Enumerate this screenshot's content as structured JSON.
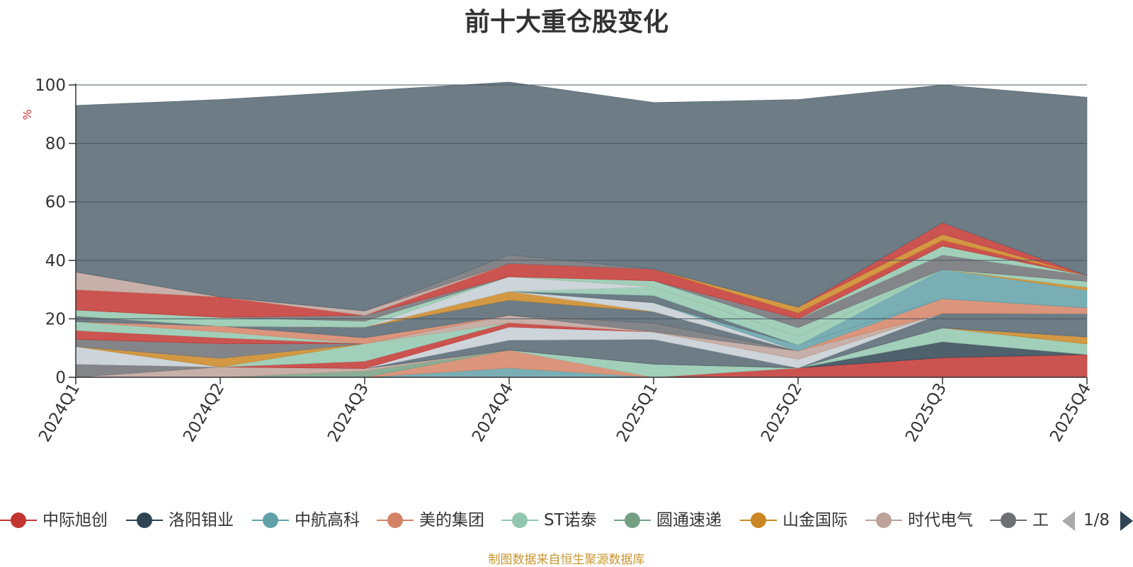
{
  "chart_data": {
    "type": "area",
    "stacked": true,
    "title": "前十大重仓股变化",
    "ylabel": "%",
    "ylim": [
      0,
      100
    ],
    "yticks": [
      0,
      20,
      40,
      60,
      80,
      100
    ],
    "grid": true,
    "categories": [
      "2024Q1",
      "2024Q2",
      "2024Q3",
      "2024Q4",
      "2025Q1",
      "2025Q2",
      "2025Q3",
      "2025Q4"
    ],
    "series": [
      {
        "name": "中际旭创",
        "color": "#c23531",
        "values": [
          0,
          0,
          0,
          0,
          0,
          3.2,
          6.7,
          7.8
        ]
      },
      {
        "name": "洛阳钼业",
        "color": "#2f4554",
        "values": [
          0,
          0,
          0,
          0,
          0,
          0,
          5.5,
          0
        ]
      },
      {
        "name": "中航高科",
        "color": "#61a0a8",
        "values": [
          0,
          0,
          0,
          3.2,
          0,
          0,
          0,
          0
        ]
      },
      {
        "name": "美的集团",
        "color": "#d48265",
        "values": [
          0,
          0,
          0,
          6.1,
          0,
          0,
          0,
          0
        ]
      },
      {
        "name": "ST诺泰",
        "color": "#91c7ae",
        "values": [
          0,
          0,
          0,
          0,
          4.5,
          0,
          4.7,
          3.6
        ]
      },
      {
        "name": "圆通速递",
        "color": "#749f83",
        "values": [
          0,
          0,
          2.2,
          0,
          0,
          0,
          0,
          0
        ]
      },
      {
        "name": "山金国际",
        "color": "#ca8622",
        "values": [
          0,
          0,
          0,
          0,
          0,
          0,
          0,
          2.4
        ]
      },
      {
        "name": "时代电气",
        "color": "#bda29a",
        "values": [
          0,
          3.5,
          0.8,
          0,
          0,
          0,
          0,
          0
        ]
      },
      {
        "name": "工",
        "color": "#6e7074",
        "values": [
          4.5,
          0,
          0,
          0,
          0,
          0,
          0,
          0
        ]
      },
      {
        "color": "#546570",
        "values": [
          0,
          0,
          0,
          3.4,
          8.5,
          0,
          5.0,
          8.0
        ]
      },
      {
        "color": "#c4ccd3",
        "values": [
          6.0,
          0,
          0,
          4.5,
          2.5,
          3.0,
          0,
          0
        ]
      },
      {
        "color": "#c23531",
        "values": [
          0,
          0,
          2.5,
          1.5,
          0,
          0,
          0,
          0
        ]
      },
      {
        "color": "#91c7ae",
        "values": [
          0,
          0,
          6.0,
          0,
          0,
          0,
          0,
          0
        ]
      },
      {
        "color": "#ca8622",
        "values": [
          0,
          3.0,
          0,
          0,
          0,
          0,
          0,
          0
        ]
      },
      {
        "color": "#bda29a",
        "values": [
          0,
          0,
          0,
          2.5,
          0,
          2.8,
          0,
          0
        ]
      },
      {
        "color": "#6e7074",
        "values": [
          2.5,
          5.0,
          0,
          0,
          3.0,
          0,
          0,
          0
        ]
      },
      {
        "color": "#c23531",
        "values": [
          3.0,
          2.0,
          0,
          0,
          0,
          0,
          0,
          0
        ]
      },
      {
        "color": "#91c7ae",
        "values": [
          3.0,
          2.0,
          0,
          0,
          0,
          0,
          0,
          0
        ]
      },
      {
        "color": "#d48265",
        "values": [
          0,
          2.0,
          2.0,
          0,
          0,
          0,
          0,
          0
        ]
      },
      {
        "color": "#546570",
        "values": [
          0,
          0,
          3.7,
          5.2,
          4.0,
          0,
          0,
          0
        ]
      },
      {
        "color": "#ca8622",
        "values": [
          0,
          0,
          0,
          3.0,
          0,
          0,
          0,
          0
        ]
      },
      {
        "color": "#c4ccd3",
        "values": [
          0,
          0,
          0,
          0,
          3.0,
          0,
          0,
          0
        ]
      },
      {
        "color": "#d48265",
        "values": [
          0,
          0,
          0,
          0,
          0,
          0,
          5.0,
          2.0
        ]
      },
      {
        "color": "#61a0a8",
        "values": [
          0,
          0,
          0,
          0,
          0,
          2.0,
          0,
          0
        ]
      },
      {
        "color": "#c4ccd3",
        "values": [
          0,
          0,
          0,
          0,
          0,
          0,
          0,
          0
        ]
      },
      {
        "color": "#546570",
        "values": [
          2.0,
          0,
          0,
          0,
          2.5,
          0,
          0,
          0
        ]
      },
      {
        "color": "#61a0a8",
        "values": [
          0,
          0,
          0,
          0,
          0,
          0,
          10.0,
          6.0
        ]
      },
      {
        "color": "#91c7ae",
        "values": [
          0,
          0,
          0,
          0,
          3.0,
          3.0,
          0,
          0
        ]
      },
      {
        "color": "#bda29a",
        "values": [
          0,
          0,
          0,
          0,
          0,
          0,
          0,
          0
        ]
      },
      {
        "color": "#c4ccd3",
        "values": [
          0,
          0,
          0,
          5.0,
          0,
          0,
          0,
          0
        ]
      },
      {
        "color": "#ca8622",
        "values": [
          0,
          0,
          0,
          0,
          0,
          0,
          0,
          1.0
        ]
      },
      {
        "color": "#91c7ae",
        "values": [
          2.0,
          3.0,
          2.0,
          0,
          2.0,
          3.0,
          0,
          2.0
        ]
      },
      {
        "color": "#6e7074",
        "values": [
          0,
          0,
          2.0,
          0,
          0,
          3.0,
          5.0,
          2.0
        ]
      },
      {
        "color": "#91c7ae",
        "values": [
          0,
          0,
          0,
          0,
          0,
          0,
          3.0,
          0
        ]
      },
      {
        "color": "#c23531",
        "values": [
          7.0,
          7.0,
          0,
          4.5,
          4.0,
          2.0,
          2.0,
          0
        ]
      },
      {
        "color": "#ca8622",
        "values": [
          0,
          0,
          0,
          0,
          0,
          2.0,
          2.0,
          0
        ]
      },
      {
        "color": "#bda29a",
        "values": [
          6.0,
          0,
          1.5,
          0,
          0,
          0,
          0,
          0
        ]
      },
      {
        "color": "#c4ccd3",
        "values": [
          0,
          0,
          0,
          0,
          0,
          0,
          0,
          0
        ]
      },
      {
        "color": "#c23531",
        "values": [
          0,
          0,
          0,
          0,
          0,
          0,
          4.0,
          0
        ]
      },
      {
        "color": "#6e7074",
        "values": [
          0,
          0,
          0,
          3.0,
          0,
          0,
          0,
          0
        ]
      },
      {
        "color": "#546570",
        "values": [
          57.0,
          67.5,
          75.3,
          59.1,
          57.0,
          71.0,
          47.1,
          61.0
        ]
      }
    ]
  },
  "legend": {
    "visible_items": [
      "中际旭创",
      "洛阳钼业",
      "中航高科",
      "美的集团",
      "ST诺泰",
      "圆通速递",
      "山金国际",
      "时代电气",
      "工"
    ],
    "colors": [
      "#c23531",
      "#2f4554",
      "#61a0a8",
      "#d48265",
      "#91c7ae",
      "#749f83",
      "#ca8622",
      "#bda29a",
      "#6e7074"
    ],
    "page": "1/8"
  },
  "source_text": "制图数据来自恒生聚源数据库"
}
